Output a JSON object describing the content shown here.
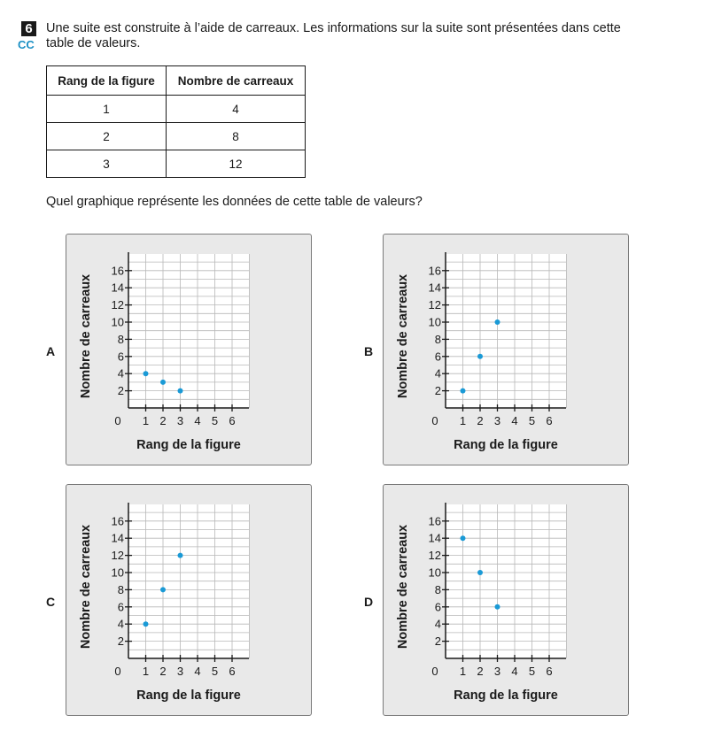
{
  "question": {
    "number": "6",
    "tag": "CC",
    "stem_line1": "Une suite est construite à l’aide de carreaux. Les informations sur la suite sont présentées dans cette",
    "stem_line2": "table de valeurs.",
    "prompt": "Quel graphique représente les données de cette table de valeurs?"
  },
  "table": {
    "headers": [
      "Rang de la figure",
      "Nombre de carreaux"
    ],
    "rows": [
      [
        "1",
        "4"
      ],
      [
        "2",
        "8"
      ],
      [
        "3",
        "12"
      ]
    ]
  },
  "chart_data": [
    {
      "option": "A",
      "type": "scatter",
      "xlabel": "Rang de la figure",
      "ylabel": "Nombre de carreaux",
      "x_ticks": [
        "0",
        "1",
        "2",
        "3",
        "4",
        "5",
        "6"
      ],
      "y_ticks": [
        "2",
        "4",
        "6",
        "8",
        "10",
        "12",
        "14",
        "16"
      ],
      "xlim": [
        0,
        6
      ],
      "ylim": [
        0,
        16
      ],
      "grid": true,
      "x": [
        1,
        2,
        3
      ],
      "y": [
        4,
        3,
        2
      ],
      "color": "#1a9ad6"
    },
    {
      "option": "B",
      "type": "scatter",
      "xlabel": "Rang de la figure",
      "ylabel": "Nombre de carreaux",
      "x_ticks": [
        "0",
        "1",
        "2",
        "3",
        "4",
        "5",
        "6"
      ],
      "y_ticks": [
        "2",
        "4",
        "6",
        "8",
        "10",
        "12",
        "14",
        "16"
      ],
      "xlim": [
        0,
        6
      ],
      "ylim": [
        0,
        16
      ],
      "grid": true,
      "x": [
        1,
        2,
        3
      ],
      "y": [
        2,
        6,
        10
      ],
      "color": "#1a9ad6"
    },
    {
      "option": "C",
      "type": "scatter",
      "xlabel": "Rang de la figure",
      "ylabel": "Nombre de carreaux",
      "x_ticks": [
        "0",
        "1",
        "2",
        "3",
        "4",
        "5",
        "6"
      ],
      "y_ticks": [
        "2",
        "4",
        "6",
        "8",
        "10",
        "12",
        "14",
        "16"
      ],
      "xlim": [
        0,
        6
      ],
      "ylim": [
        0,
        16
      ],
      "grid": true,
      "x": [
        1,
        2,
        3
      ],
      "y": [
        4,
        8,
        12
      ],
      "color": "#1a9ad6"
    },
    {
      "option": "D",
      "type": "scatter",
      "xlabel": "Rang de la figure",
      "ylabel": "Nombre de carreaux",
      "x_ticks": [
        "0",
        "1",
        "2",
        "3",
        "4",
        "5",
        "6"
      ],
      "y_ticks": [
        "2",
        "4",
        "6",
        "8",
        "10",
        "12",
        "14",
        "16"
      ],
      "xlim": [
        0,
        6
      ],
      "ylim": [
        0,
        16
      ],
      "grid": true,
      "x": [
        1,
        2,
        3
      ],
      "y": [
        14,
        10,
        6
      ],
      "color": "#1a9ad6"
    }
  ]
}
